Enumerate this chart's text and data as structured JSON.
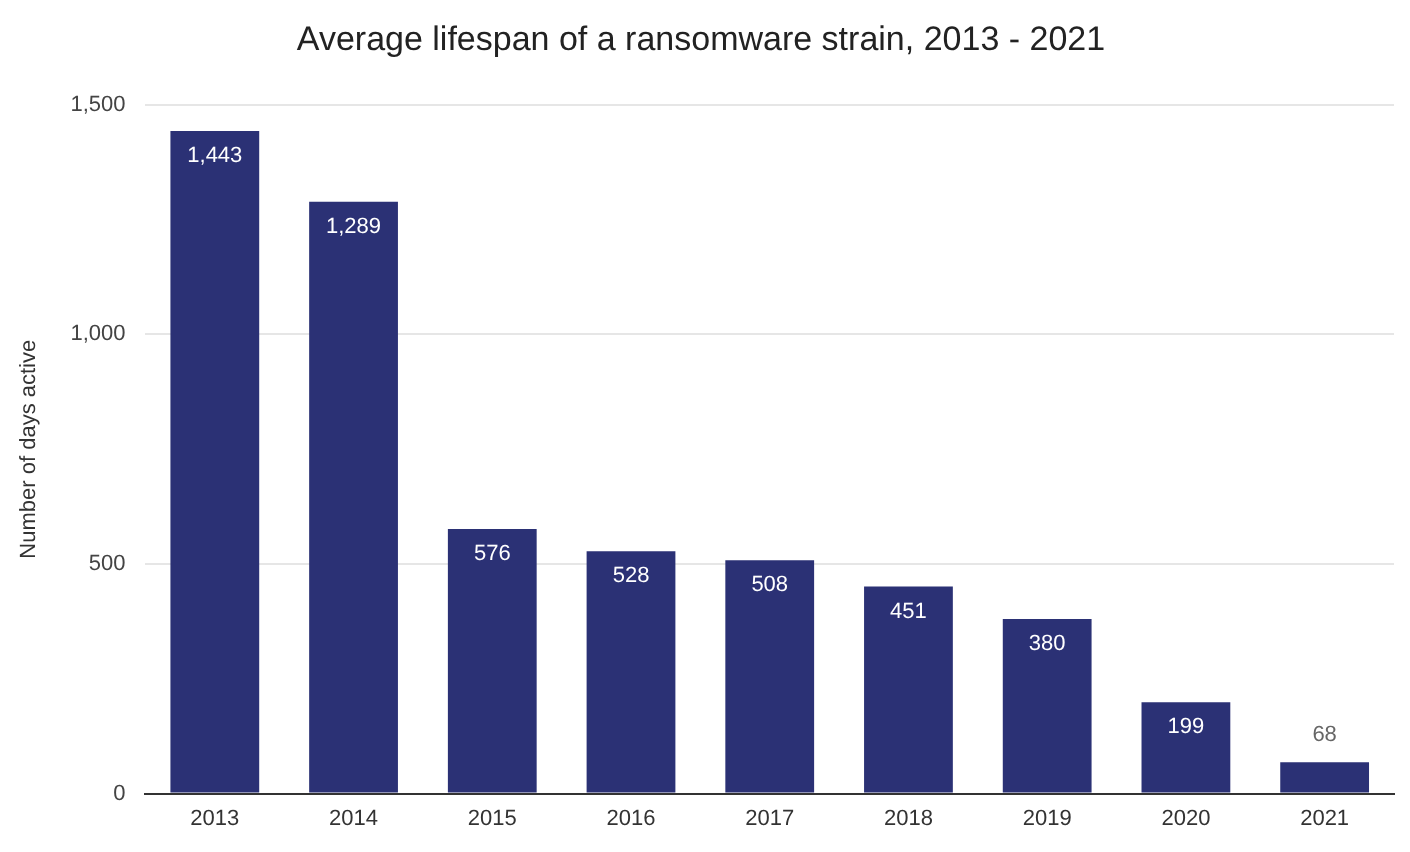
{
  "chart_data": {
    "type": "bar",
    "title": "Average lifespan of a ransomware strain, 2013 - 2021",
    "ylabel": "Number of days active",
    "categories": [
      "2013",
      "2014",
      "2015",
      "2016",
      "2017",
      "2018",
      "2019",
      "2020",
      "2021"
    ],
    "values": [
      1443,
      1289,
      576,
      528,
      508,
      451,
      380,
      199,
      68
    ],
    "value_labels": [
      "1,443",
      "1,289",
      "576",
      "528",
      "508",
      "451",
      "380",
      "199",
      "68"
    ],
    "color": "#2b3175",
    "ylim": [
      0,
      1500
    ],
    "yticks": [
      0,
      {
        "value": 500,
        "label": "500"
      },
      {
        "value": 1000,
        "label": "1,000"
      },
      {
        "value": 1500,
        "label": "1,500"
      }
    ],
    "grid": "y"
  }
}
